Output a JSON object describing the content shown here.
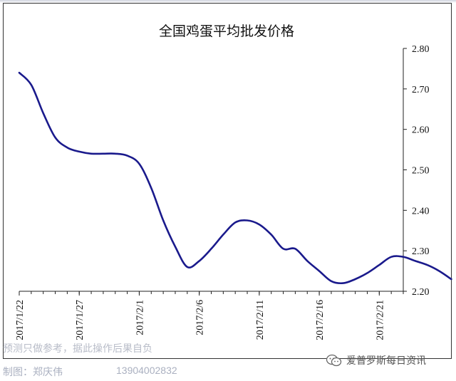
{
  "chart_data": {
    "type": "line",
    "title": "全国鸡蛋平均批发价格",
    "xlabel": "",
    "ylabel": "",
    "ylim": [
      2.2,
      2.8
    ],
    "y_ticks": [
      "2.80",
      "2.70",
      "2.60",
      "2.50",
      "2.40",
      "2.30",
      "2.20"
    ],
    "y_axis_side": "right",
    "grid": false,
    "legend": "none",
    "x_tick_labels": [
      "2017/1/22",
      "2017/1/27",
      "2017/2/1",
      "2017/2/6",
      "2017/2/11",
      "2017/2/16",
      "2017/2/21"
    ],
    "x_start": "2017-01-22",
    "x_end": "2017-02-23",
    "series": [
      {
        "color": "#1a1a8c",
        "points": [
          [
            "2017-01-22",
            2.74
          ],
          [
            "2017-01-23",
            2.71
          ],
          [
            "2017-01-24",
            2.64
          ],
          [
            "2017-01-25",
            2.58
          ],
          [
            "2017-01-26",
            2.555
          ],
          [
            "2017-01-27",
            2.545
          ],
          [
            "2017-01-28",
            2.54
          ],
          [
            "2017-01-29",
            2.54
          ],
          [
            "2017-01-30",
            2.54
          ],
          [
            "2017-01-31",
            2.535
          ],
          [
            "2017-02-01",
            2.515
          ],
          [
            "2017-02-02",
            2.455
          ],
          [
            "2017-02-03",
            2.375
          ],
          [
            "2017-02-04",
            2.31
          ],
          [
            "2017-02-05",
            2.26
          ],
          [
            "2017-02-06",
            2.275
          ],
          [
            "2017-02-07",
            2.305
          ],
          [
            "2017-02-08",
            2.34
          ],
          [
            "2017-02-09",
            2.37
          ],
          [
            "2017-02-10",
            2.375
          ],
          [
            "2017-02-11",
            2.365
          ],
          [
            "2017-02-12",
            2.34
          ],
          [
            "2017-02-13",
            2.305
          ],
          [
            "2017-02-14",
            2.305
          ],
          [
            "2017-02-15",
            2.275
          ],
          [
            "2017-02-16",
            2.25
          ],
          [
            "2017-02-17",
            2.225
          ],
          [
            "2017-02-18",
            2.22
          ],
          [
            "2017-02-19",
            2.23
          ],
          [
            "2017-02-20",
            2.245
          ],
          [
            "2017-02-21",
            2.265
          ],
          [
            "2017-02-22",
            2.285
          ],
          [
            "2017-02-23",
            2.285
          ],
          [
            "2017-02-24",
            2.275
          ],
          [
            "2017-02-25",
            2.265
          ],
          [
            "2017-02-26",
            2.25
          ],
          [
            "2017-02-27",
            2.23
          ]
        ]
      }
    ]
  },
  "footer": {
    "disclaimer": "预测只做参考，据此操作后果自负",
    "credit": "制图：郑庆伟",
    "phone": "13904002832",
    "watermark": "爱普罗斯每日资讯",
    "watermark_icon": "wechat-icon"
  }
}
